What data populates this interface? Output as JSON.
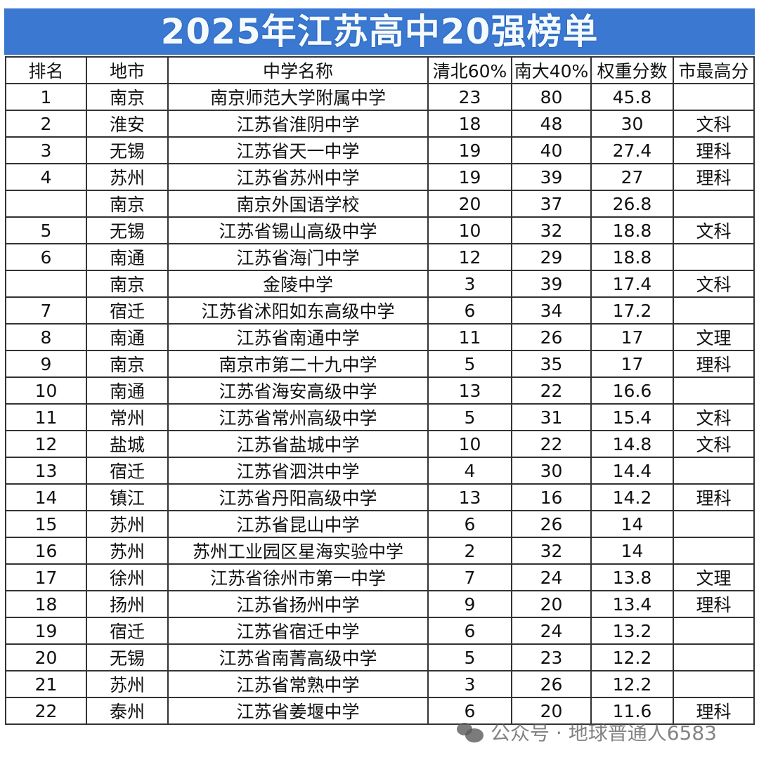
{
  "title": "2025年江苏高中20强榜单",
  "columns": [
    "排名",
    "地市",
    "中学名称",
    "清北60%",
    "南大40%",
    "权重分数",
    "市最高分"
  ],
  "rows": [
    [
      "1",
      "南京",
      "南京师范大学附属中学",
      "23",
      "80",
      "45.8",
      ""
    ],
    [
      "2",
      "淮安",
      "江苏省淮阴中学",
      "18",
      "48",
      "30",
      "文科"
    ],
    [
      "3",
      "无锡",
      "江苏省天一中学",
      "19",
      "40",
      "27.4",
      "理科"
    ],
    [
      "4",
      "苏州",
      "江苏省苏州中学",
      "19",
      "39",
      "27",
      "理科"
    ],
    [
      "",
      "南京",
      "南京外国语学校",
      "20",
      "37",
      "26.8",
      ""
    ],
    [
      "5",
      "无锡",
      "江苏省锡山高级中学",
      "10",
      "32",
      "18.8",
      "文科"
    ],
    [
      "6",
      "南通",
      "江苏省海门中学",
      "12",
      "29",
      "18.8",
      ""
    ],
    [
      "",
      "南京",
      "金陵中学",
      "3",
      "39",
      "17.4",
      "文科"
    ],
    [
      "7",
      "宿迁",
      "江苏省沭阳如东高级中学",
      "6",
      "34",
      "17.2",
      ""
    ],
    [
      "8",
      "南通",
      "江苏省南通中学",
      "11",
      "26",
      "17",
      "文理"
    ],
    [
      "9",
      "南京",
      "南京市第二十九中学",
      "5",
      "35",
      "17",
      "理科"
    ],
    [
      "10",
      "南通",
      "江苏省海安高级中学",
      "13",
      "22",
      "16.6",
      ""
    ],
    [
      "11",
      "常州",
      "江苏省常州高级中学",
      "5",
      "31",
      "15.4",
      "文科"
    ],
    [
      "12",
      "盐城",
      "江苏省盐城中学",
      "10",
      "22",
      "14.8",
      "文科"
    ],
    [
      "13",
      "宿迁",
      "江苏省泗洪中学",
      "4",
      "30",
      "14.4",
      ""
    ],
    [
      "14",
      "镇江",
      "江苏省丹阳高级中学",
      "13",
      "16",
      "14.2",
      "理科"
    ],
    [
      "15",
      "苏州",
      "江苏省昆山中学",
      "6",
      "26",
      "14",
      ""
    ],
    [
      "16",
      "苏州",
      "苏州工业园区星海实验中学",
      "2",
      "32",
      "14",
      ""
    ],
    [
      "17",
      "徐州",
      "江苏省徐州市第一中学",
      "7",
      "24",
      "13.8",
      "文理"
    ],
    [
      "18",
      "扬州",
      "江苏省扬州中学",
      "9",
      "20",
      "13.4",
      "理科"
    ],
    [
      "19",
      "宿迁",
      "江苏省宿迁中学",
      "6",
      "24",
      "13.2",
      ""
    ],
    [
      "20",
      "无锡",
      "江苏省南菁高级中学",
      "5",
      "23",
      "12.2",
      ""
    ],
    [
      "21",
      "苏州",
      "江苏省常熟中学",
      "3",
      "26",
      "12.2",
      ""
    ],
    [
      "22",
      "泰州",
      "江苏省姜堰中学",
      "6",
      "20",
      "11.6",
      "理科"
    ]
  ],
  "watermark": "公众号 · 地球普通人6583",
  "colors": {
    "title_bg": "#3a78d2",
    "title_text": "#f4fbff"
  }
}
